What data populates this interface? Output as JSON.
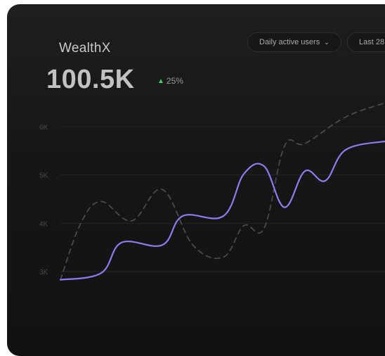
{
  "brand": "WealthX",
  "metric": {
    "value": "100.5K",
    "delta": "25%",
    "delta_color": "#3fcf6a"
  },
  "filters": {
    "metric_select": {
      "label": "Daily active users",
      "icon": "chevron-down-icon"
    },
    "range_select": {
      "label": "Last 28"
    }
  },
  "chart_data": {
    "type": "line",
    "yticks": [
      "6K",
      "5K",
      "4K",
      "3K"
    ],
    "ylim": [
      2000,
      6500
    ],
    "xlim": [
      0,
      16
    ],
    "grid": true,
    "series": [
      {
        "color": "#8e7cf0",
        "style": "solid",
        "points": [
          [
            0,
            2830
          ],
          [
            2,
            2970
          ],
          [
            3,
            3600
          ],
          [
            5,
            3550
          ],
          [
            6,
            4150
          ],
          [
            8,
            4150
          ],
          [
            9,
            5020
          ],
          [
            10,
            5180
          ],
          [
            11,
            4330
          ],
          [
            12,
            5080
          ],
          [
            13,
            4880
          ],
          [
            14,
            5520
          ],
          [
            16,
            5700
          ]
        ]
      },
      {
        "color": "#4a4a4a",
        "style": "dashed",
        "points": [
          [
            0,
            2830
          ],
          [
            1,
            4000
          ],
          [
            2,
            4450
          ],
          [
            3.5,
            4050
          ],
          [
            5,
            4700
          ],
          [
            6.5,
            3550
          ],
          [
            8,
            3300
          ],
          [
            9,
            3950
          ],
          [
            10,
            3900
          ],
          [
            11,
            5600
          ],
          [
            12,
            5650
          ],
          [
            14,
            6200
          ],
          [
            16,
            6500
          ]
        ]
      }
    ]
  }
}
